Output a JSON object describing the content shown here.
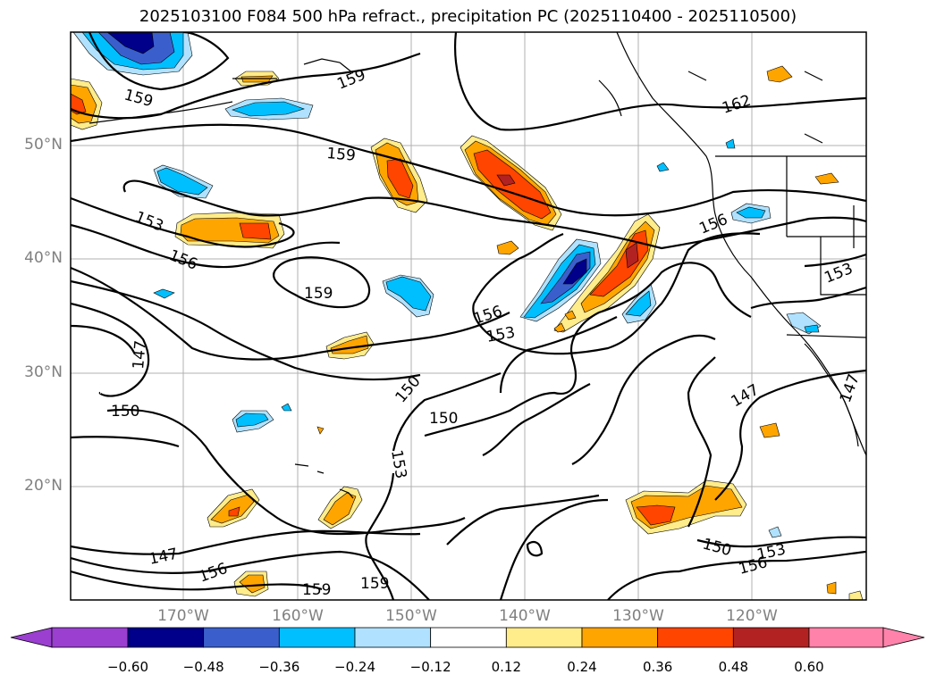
{
  "title": "2025103100 F084 500 hPa refract., precipitation PC (2025110400 - 2025110500)",
  "lat_labels": [
    "50°N",
    "40°N",
    "30°N",
    "20°N"
  ],
  "lon_labels": [
    "170°W",
    "160°W",
    "150°W",
    "140°W",
    "130°W",
    "120°W"
  ],
  "contour_labels": [
    "159",
    "159",
    "162",
    "159",
    "153",
    "156",
    "159",
    "156",
    "156",
    "153",
    "147",
    "150",
    "150",
    "150",
    "153",
    "147",
    "156",
    "159",
    "159",
    "150",
    "153",
    "156",
    "153",
    "147",
    "147"
  ],
  "colorbar": {
    "ticks": [
      "−0.60",
      "−0.48",
      "−0.36",
      "−0.24",
      "−0.12",
      "0.12",
      "0.24",
      "0.36",
      "0.48",
      "0.60"
    ],
    "colors": [
      "#9a3fd0",
      "#00008b",
      "#3a5fcd",
      "#00bfff",
      "#b0e2ff",
      "#ffffff",
      "#ffec8b",
      "#ffa500",
      "#ff4500",
      "#b22222",
      "#ff82ab"
    ]
  }
}
